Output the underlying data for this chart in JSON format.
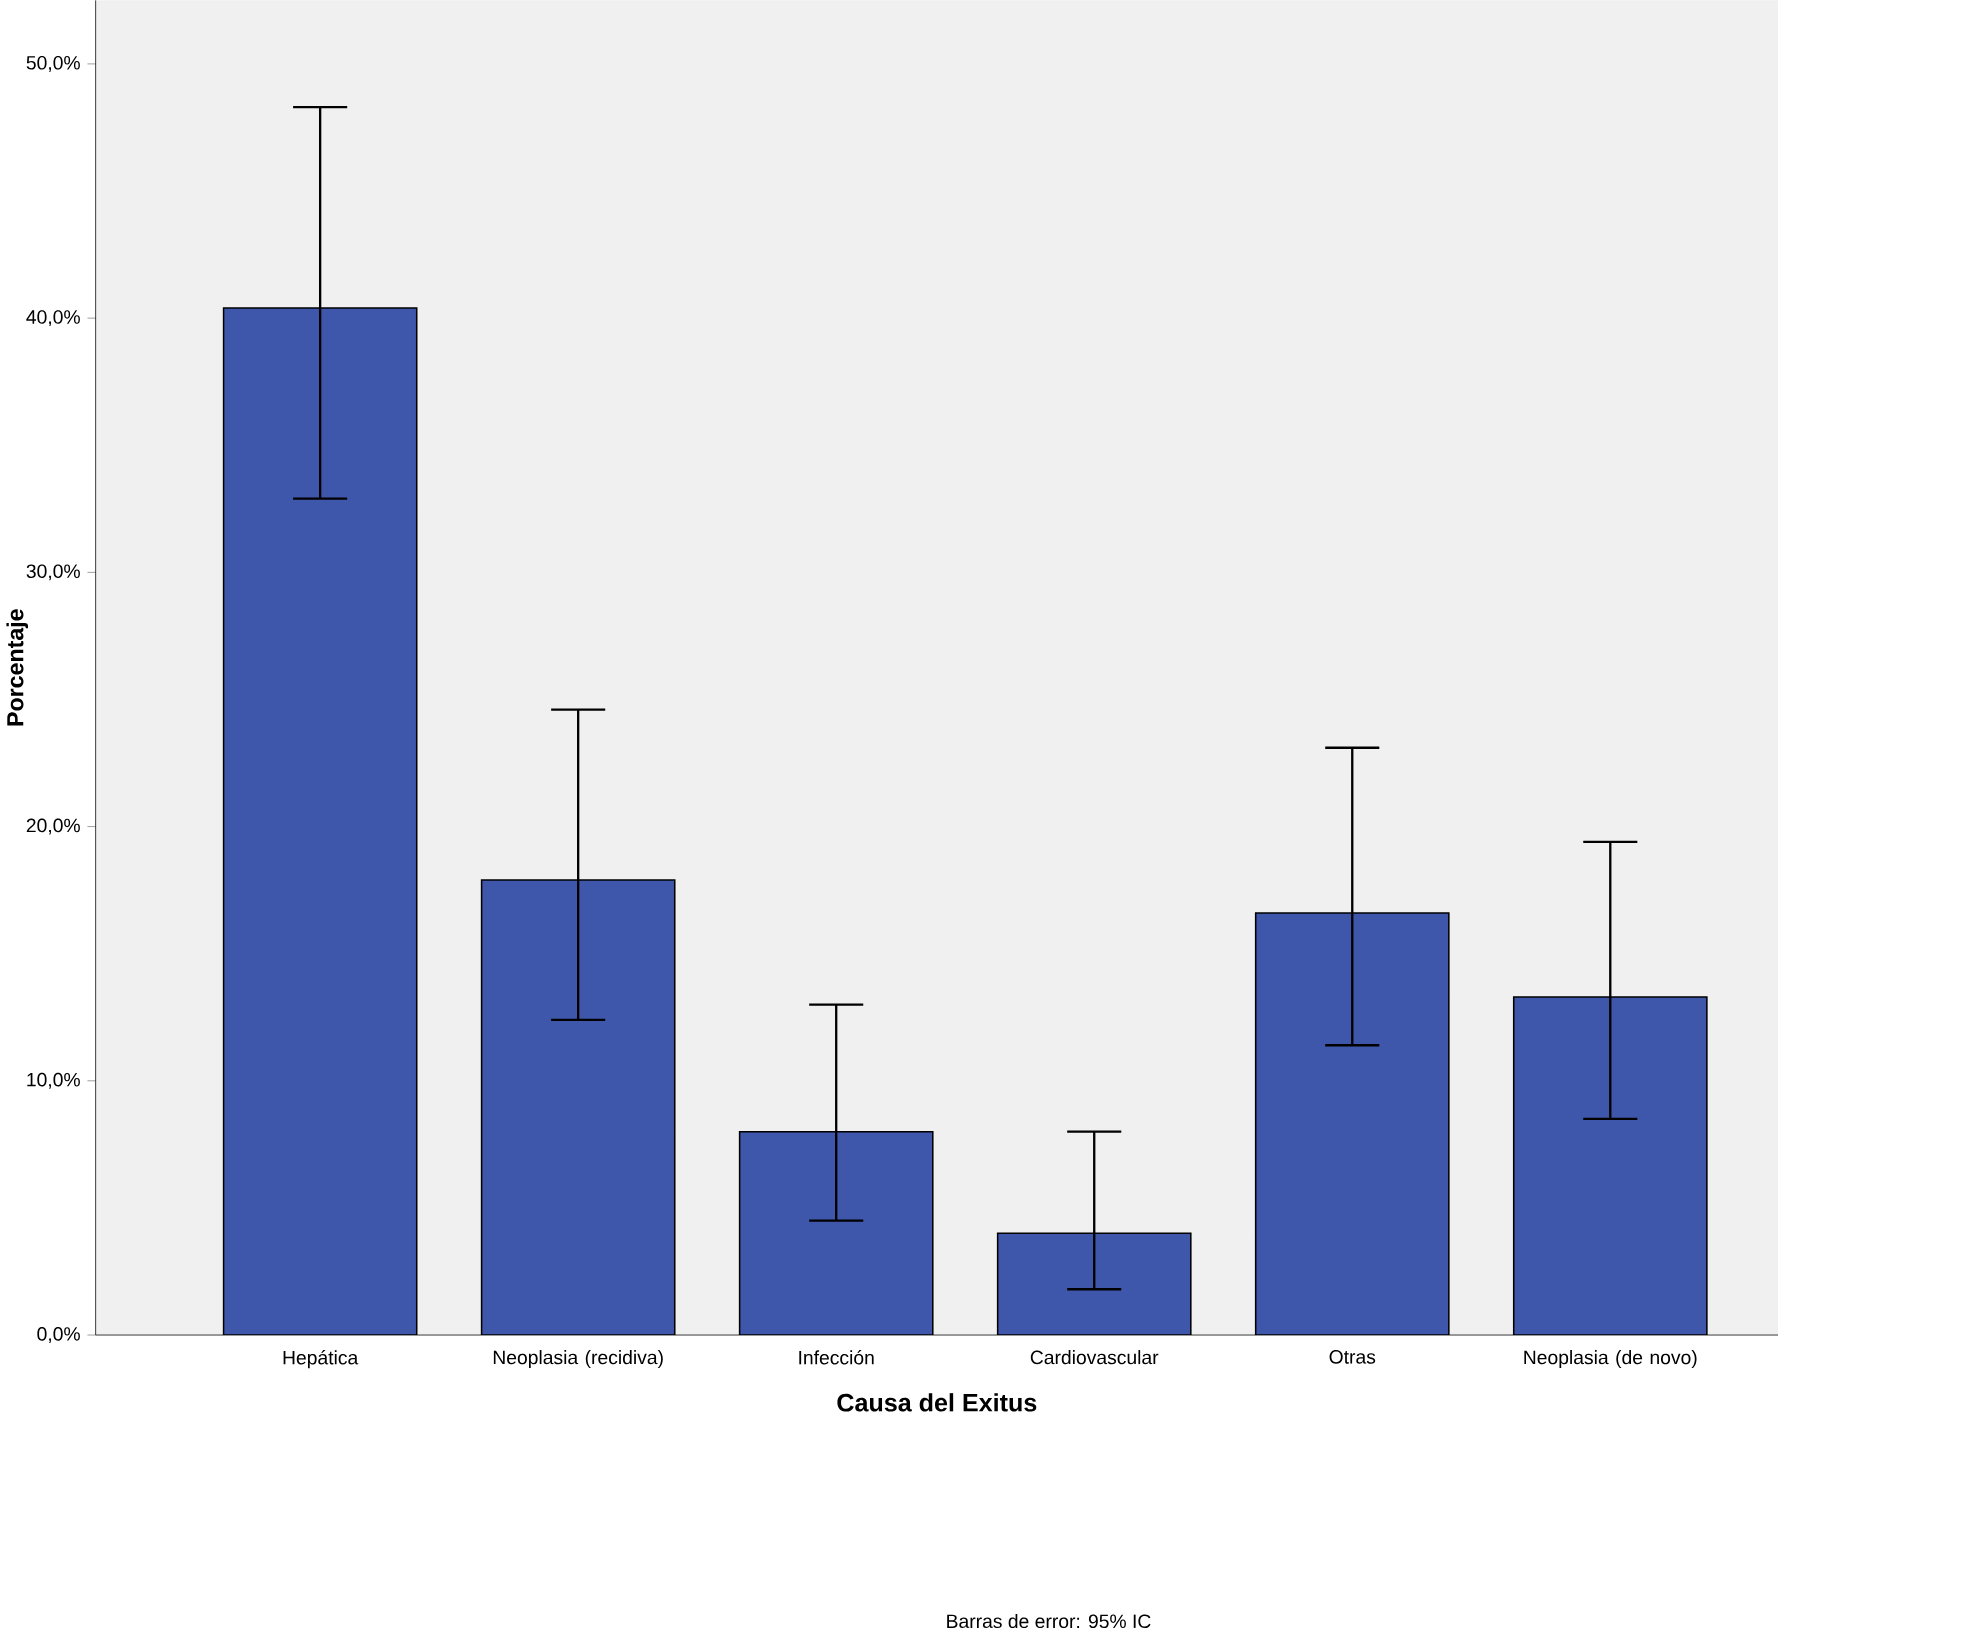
{
  "chart_data": {
    "type": "bar",
    "xlabel": "Causa del Exitus",
    "ylabel": "Porcentaje",
    "categories": [
      "Hepática",
      "Neoplasia (recidiva)",
      "Infección",
      "Cardiovascular",
      "Otras",
      "Neoplasia (de novo)"
    ],
    "values": [
      40.4,
      17.9,
      8.0,
      4.0,
      16.6,
      13.3
    ],
    "errors": [
      [
        32.9,
        48.3
      ],
      [
        12.4,
        24.6
      ],
      [
        4.5,
        13.0
      ],
      [
        1.8,
        8.0
      ],
      [
        11.4,
        23.1
      ],
      [
        8.5,
        19.4
      ]
    ],
    "color": "#3f57ab",
    "ylim": [
      0,
      52.5
    ],
    "yticks": [
      {
        "value": 0,
        "label": "0,0%"
      },
      {
        "value": 10,
        "label": "10,0%"
      },
      {
        "value": 20,
        "label": "20,0%"
      },
      {
        "value": 30,
        "label": "30,0%"
      },
      {
        "value": 40,
        "label": "40,0%"
      },
      {
        "value": 50,
        "label": "50,0%"
      }
    ],
    "grid": false,
    "annotations": [
      "Barras de error: 95% IC"
    ]
  }
}
